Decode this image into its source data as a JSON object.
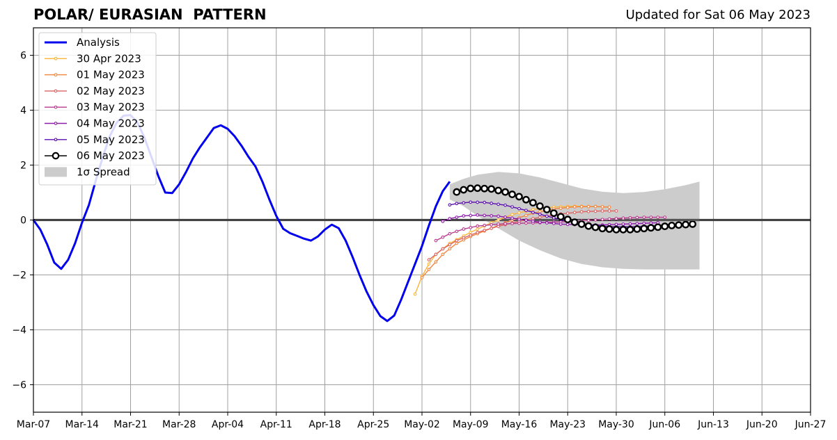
{
  "title": "POLAR/ EURASIAN  PATTERN",
  "subtitle": "Updated for Sat 06 May 2023",
  "chart_data": {
    "type": "line",
    "x_axis": {
      "type": "date",
      "range": [
        "2023-03-07",
        "2023-06-27"
      ],
      "tick_labels": [
        "Mar-07",
        "Mar-14",
        "Mar-21",
        "Mar-28",
        "Apr-04",
        "Apr-11",
        "Apr-18",
        "Apr-25",
        "May-02",
        "May-09",
        "May-16",
        "May-23",
        "May-30",
        "Jun-06",
        "Jun-13",
        "Jun-20",
        "Jun-27"
      ],
      "tick_dates": [
        "2023-03-07",
        "2023-03-14",
        "2023-03-21",
        "2023-03-28",
        "2023-04-04",
        "2023-04-11",
        "2023-04-18",
        "2023-04-25",
        "2023-05-02",
        "2023-05-09",
        "2023-05-16",
        "2023-05-23",
        "2023-05-30",
        "2023-06-06",
        "2023-06-13",
        "2023-06-20",
        "2023-06-27"
      ]
    },
    "y_axis": {
      "range": [
        -7,
        7
      ],
      "ticks": [
        6,
        4,
        2,
        0,
        -2,
        -4,
        -6
      ],
      "tick_labels": [
        "6",
        "4",
        "2",
        "0",
        "−2",
        "−4",
        "−6"
      ]
    },
    "grid": true,
    "zero_line": true,
    "legend_position": "top-left",
    "analysis": {
      "name": "Analysis",
      "color": "#0000ee",
      "points": [
        [
          "2023-03-07",
          0.0
        ],
        [
          "2023-03-08",
          -0.35
        ],
        [
          "2023-03-09",
          -0.9
        ],
        [
          "2023-03-10",
          -1.55
        ],
        [
          "2023-03-11",
          -1.78
        ],
        [
          "2023-03-12",
          -1.45
        ],
        [
          "2023-03-13",
          -0.85
        ],
        [
          "2023-03-14",
          -0.1
        ],
        [
          "2023-03-15",
          0.55
        ],
        [
          "2023-03-16",
          1.45
        ],
        [
          "2023-03-17",
          2.3
        ],
        [
          "2023-03-18",
          3.05
        ],
        [
          "2023-03-19",
          3.55
        ],
        [
          "2023-03-20",
          3.8
        ],
        [
          "2023-03-21",
          3.82
        ],
        [
          "2023-03-22",
          3.55
        ],
        [
          "2023-03-23",
          3.0
        ],
        [
          "2023-03-24",
          2.3
        ],
        [
          "2023-03-25",
          1.6
        ],
        [
          "2023-03-26",
          1.0
        ],
        [
          "2023-03-27",
          0.98
        ],
        [
          "2023-03-28",
          1.3
        ],
        [
          "2023-03-29",
          1.75
        ],
        [
          "2023-03-30",
          2.25
        ],
        [
          "2023-03-31",
          2.65
        ],
        [
          "2023-04-01",
          3.0
        ],
        [
          "2023-04-02",
          3.35
        ],
        [
          "2023-04-03",
          3.45
        ],
        [
          "2023-04-04",
          3.32
        ],
        [
          "2023-04-05",
          3.05
        ],
        [
          "2023-04-06",
          2.7
        ],
        [
          "2023-04-07",
          2.3
        ],
        [
          "2023-04-08",
          1.95
        ],
        [
          "2023-04-09",
          1.4
        ],
        [
          "2023-04-10",
          0.75
        ],
        [
          "2023-04-11",
          0.15
        ],
        [
          "2023-04-12",
          -0.32
        ],
        [
          "2023-04-13",
          -0.48
        ],
        [
          "2023-04-14",
          -0.58
        ],
        [
          "2023-04-15",
          -0.68
        ],
        [
          "2023-04-16",
          -0.75
        ],
        [
          "2023-04-17",
          -0.6
        ],
        [
          "2023-04-18",
          -0.35
        ],
        [
          "2023-04-19",
          -0.17
        ],
        [
          "2023-04-20",
          -0.3
        ],
        [
          "2023-04-21",
          -0.75
        ],
        [
          "2023-04-22",
          -1.35
        ],
        [
          "2023-04-23",
          -2.0
        ],
        [
          "2023-04-24",
          -2.6
        ],
        [
          "2023-04-25",
          -3.1
        ],
        [
          "2023-04-26",
          -3.5
        ],
        [
          "2023-04-27",
          -3.68
        ],
        [
          "2023-04-28",
          -3.48
        ],
        [
          "2023-04-29",
          -2.9
        ],
        [
          "2023-04-30",
          -2.25
        ],
        [
          "2023-05-01",
          -1.6
        ],
        [
          "2023-05-02",
          -0.95
        ],
        [
          "2023-05-03",
          -0.2
        ],
        [
          "2023-05-04",
          0.5
        ],
        [
          "2023-05-05",
          1.05
        ],
        [
          "2023-05-06",
          1.4
        ]
      ]
    },
    "spread": {
      "name": "1σ Spread",
      "color": "#cccccc",
      "upper": [
        [
          "2023-05-06",
          1.3
        ],
        [
          "2023-05-08",
          1.5
        ],
        [
          "2023-05-10",
          1.65
        ],
        [
          "2023-05-13",
          1.75
        ],
        [
          "2023-05-16",
          1.7
        ],
        [
          "2023-05-19",
          1.55
        ],
        [
          "2023-05-22",
          1.35
        ],
        [
          "2023-05-25",
          1.15
        ],
        [
          "2023-05-28",
          1.03
        ],
        [
          "2023-05-31",
          0.98
        ],
        [
          "2023-06-03",
          1.02
        ],
        [
          "2023-06-06",
          1.12
        ],
        [
          "2023-06-09",
          1.27
        ],
        [
          "2023-06-11",
          1.4
        ]
      ],
      "lower": [
        [
          "2023-05-06",
          0.75
        ],
        [
          "2023-05-08",
          0.5
        ],
        [
          "2023-05-10",
          0.15
        ],
        [
          "2023-05-13",
          -0.3
        ],
        [
          "2023-05-16",
          -0.75
        ],
        [
          "2023-05-19",
          -1.1
        ],
        [
          "2023-05-22",
          -1.4
        ],
        [
          "2023-05-25",
          -1.6
        ],
        [
          "2023-05-28",
          -1.72
        ],
        [
          "2023-05-31",
          -1.78
        ],
        [
          "2023-06-03",
          -1.8
        ],
        [
          "2023-06-06",
          -1.8
        ],
        [
          "2023-06-11",
          -1.8
        ]
      ]
    },
    "forecasts": [
      {
        "name": "30 Apr 2023",
        "color": "#fcb43a",
        "start": "2023-05-01",
        "keys": [
          [
            0,
            -2.7
          ],
          [
            1,
            -2.05
          ],
          [
            2,
            -1.6
          ],
          [
            3,
            -1.25
          ],
          [
            5,
            -0.85
          ],
          [
            8,
            -0.45
          ],
          [
            11,
            -0.1
          ],
          [
            14,
            0.2
          ],
          [
            17,
            0.38
          ],
          [
            20,
            0.47
          ],
          [
            23,
            0.5
          ],
          [
            26,
            0.49
          ],
          [
            28,
            0.47
          ]
        ]
      },
      {
        "name": "01 May 2023",
        "color": "#f2843d",
        "start": "2023-05-02",
        "keys": [
          [
            0,
            -2.1
          ],
          [
            1,
            -1.8
          ],
          [
            3,
            -1.25
          ],
          [
            5,
            -0.85
          ],
          [
            7,
            -0.6
          ],
          [
            10,
            -0.3
          ],
          [
            13,
            0.0
          ],
          [
            16,
            0.25
          ],
          [
            19,
            0.4
          ],
          [
            22,
            0.48
          ],
          [
            25,
            0.49
          ],
          [
            27,
            0.47
          ]
        ]
      },
      {
        "name": "02 May 2023",
        "color": "#dc6262",
        "start": "2023-05-03",
        "keys": [
          [
            0,
            -1.45
          ],
          [
            2,
            -1.05
          ],
          [
            4,
            -0.75
          ],
          [
            7,
            -0.45
          ],
          [
            10,
            -0.23
          ],
          [
            13,
            -0.05
          ],
          [
            16,
            0.1
          ],
          [
            19,
            0.22
          ],
          [
            22,
            0.3
          ],
          [
            25,
            0.33
          ],
          [
            27,
            0.33
          ]
        ]
      },
      {
        "name": "03 May 2023",
        "color": "#b83a8e",
        "start": "2023-05-04",
        "keys": [
          [
            0,
            -0.75
          ],
          [
            2,
            -0.5
          ],
          [
            4,
            -0.33
          ],
          [
            6,
            -0.22
          ],
          [
            9,
            -0.15
          ],
          [
            12,
            -0.12
          ],
          [
            15,
            -0.1
          ],
          [
            18,
            -0.07
          ],
          [
            21,
            -0.03
          ],
          [
            24,
            0.02
          ],
          [
            27,
            0.07
          ],
          [
            30,
            0.1
          ],
          [
            33,
            0.1
          ]
        ]
      },
      {
        "name": "04 May 2023",
        "color": "#8e1aaa",
        "start": "2023-05-05",
        "keys": [
          [
            0,
            -0.05
          ],
          [
            1,
            0.05
          ],
          [
            3,
            0.15
          ],
          [
            5,
            0.18
          ],
          [
            8,
            0.14
          ],
          [
            11,
            0.03
          ],
          [
            14,
            -0.08
          ],
          [
            17,
            -0.15
          ],
          [
            20,
            -0.18
          ],
          [
            23,
            -0.18
          ],
          [
            26,
            -0.15
          ],
          [
            29,
            -0.12
          ],
          [
            31,
            -0.1
          ]
        ]
      },
      {
        "name": "05 May 2023",
        "color": "#5a0cb0",
        "start": "2023-05-06",
        "keys": [
          [
            0,
            0.55
          ],
          [
            1,
            0.6
          ],
          [
            3,
            0.65
          ],
          [
            5,
            0.64
          ],
          [
            8,
            0.54
          ],
          [
            11,
            0.35
          ],
          [
            14,
            0.14
          ],
          [
            17,
            -0.05
          ],
          [
            20,
            -0.17
          ],
          [
            23,
            -0.24
          ],
          [
            26,
            -0.25
          ],
          [
            29,
            -0.22
          ],
          [
            32,
            -0.15
          ]
        ]
      }
    ],
    "latest_forecast": {
      "name": "06 May 2023",
      "color": "#000000",
      "start": "2023-05-07",
      "keys": [
        [
          0,
          1.02
        ],
        [
          1,
          1.1
        ],
        [
          2,
          1.15
        ],
        [
          3,
          1.16
        ],
        [
          5,
          1.13
        ],
        [
          7,
          1.02
        ],
        [
          9,
          0.85
        ],
        [
          11,
          0.63
        ],
        [
          13,
          0.38
        ],
        [
          15,
          0.12
        ],
        [
          17,
          -0.08
        ],
        [
          19,
          -0.22
        ],
        [
          21,
          -0.31
        ],
        [
          23,
          -0.35
        ],
        [
          25,
          -0.35
        ],
        [
          27,
          -0.31
        ],
        [
          29,
          -0.26
        ],
        [
          31,
          -0.2
        ],
        [
          34,
          -0.15
        ]
      ]
    },
    "legend_order": [
      "Analysis",
      "30 Apr 2023",
      "01 May 2023",
      "02 May 2023",
      "03 May 2023",
      "04 May 2023",
      "05 May 2023",
      "06 May 2023",
      "1σ Spread"
    ]
  }
}
